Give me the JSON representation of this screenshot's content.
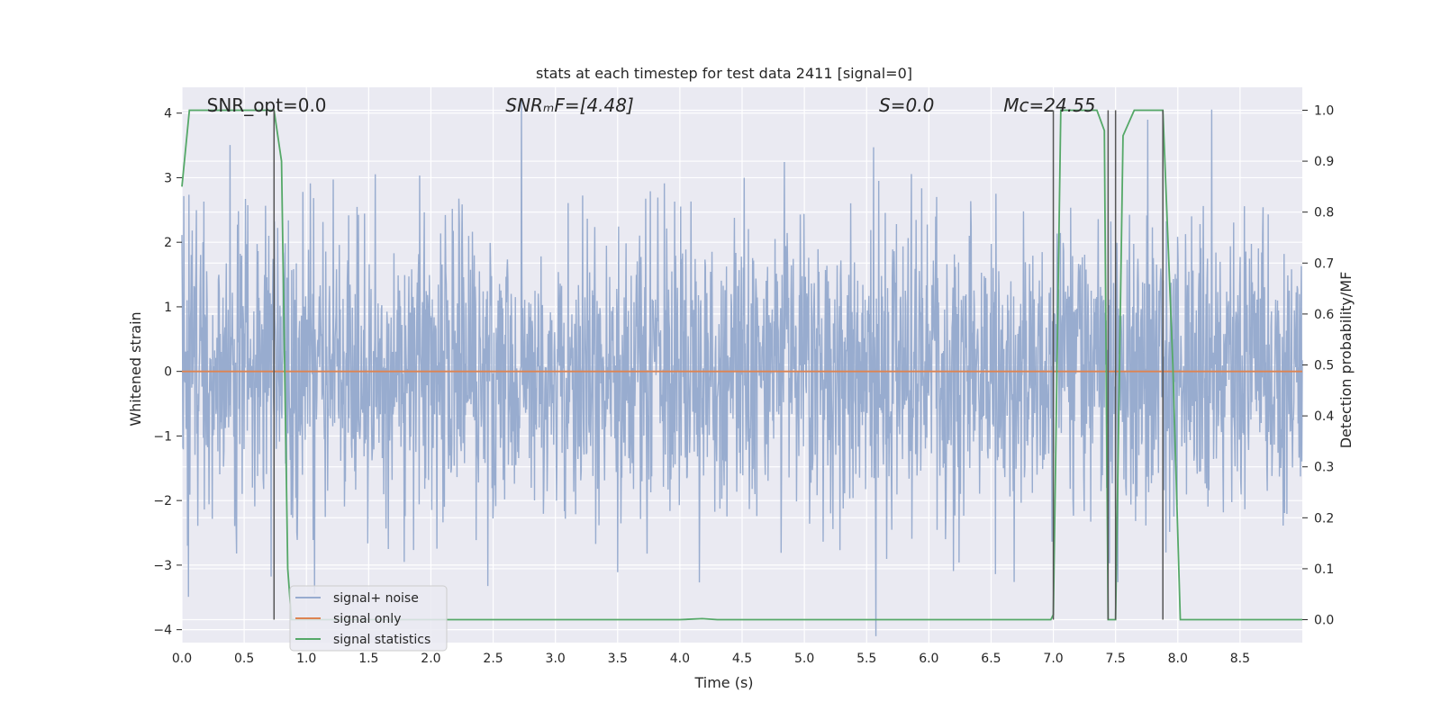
{
  "chart_data": {
    "type": "line",
    "title": "stats at each timestep for test data 2411 [signal=0]",
    "xlabel": "Time (s)",
    "ylabel": "Whitened strain",
    "ylabel_right": "Detection probability/MF",
    "xlim": [
      0,
      9.0
    ],
    "ylim": [
      -4.2,
      4.4
    ],
    "ylim_right": [
      -0.045,
      1.045
    ],
    "x_ticks": [
      0.0,
      0.5,
      1.0,
      1.5,
      2.0,
      2.5,
      3.0,
      3.5,
      4.0,
      4.5,
      5.0,
      5.5,
      6.0,
      6.5,
      7.0,
      7.5,
      8.0,
      8.5
    ],
    "x_tick_labels": [
      "0.0",
      "0.5",
      "1.0",
      "1.5",
      "2.0",
      "2.5",
      "3.0",
      "3.5",
      "4.0",
      "4.5",
      "5.0",
      "5.5",
      "6.0",
      "6.5",
      "7.0",
      "7.5",
      "8.0",
      "8.5"
    ],
    "y_ticks": [
      4,
      3,
      2,
      1,
      0,
      -1,
      -2,
      -3,
      -4
    ],
    "y_tick_labels": [
      "4",
      "3",
      "2",
      "1",
      "0",
      "−1",
      "−2",
      "−3",
      "−4"
    ],
    "y_ticks_right": [
      1.0,
      0.9,
      0.8,
      0.7,
      0.6,
      0.5,
      0.4,
      0.3,
      0.2,
      0.1,
      0.0
    ],
    "y_tick_labels_right": [
      "1.0",
      "0.9",
      "0.8",
      "0.7",
      "0.6",
      "0.5",
      "0.4",
      "0.3",
      "0.2",
      "0.1",
      "0.0"
    ],
    "grid": true,
    "legend_position": "lower-left",
    "annotations": [
      {
        "name": "snr-opt",
        "text": "SNR_opt=0.0",
        "x": 0.2
      },
      {
        "name": "snr-mf",
        "text": "SNRₘF=[4.48]",
        "x": 2.6
      },
      {
        "name": "s-value",
        "text": "S=0.0",
        "x": 5.6
      },
      {
        "name": "mc-value",
        "text": "Mᴄ=24.55",
        "x": 6.6
      }
    ],
    "series": [
      {
        "name": "signal+ noise",
        "color": "#98accf",
        "kind": "noise",
        "sigma": 1.0,
        "n_points": 2400,
        "seed": 2411
      },
      {
        "name": "signal only",
        "color": "#dd8452",
        "x": [
          0.0,
          9.0
        ],
        "y": [
          0.0,
          0.0
        ]
      },
      {
        "name": "signal statistics",
        "color": "#55a868",
        "axis": "right",
        "x": [
          0.0,
          0.06,
          0.1,
          0.5,
          0.68,
          0.74,
          0.8,
          0.85,
          0.88,
          1.0,
          2.0,
          3.0,
          4.0,
          4.18,
          4.3,
          5.0,
          6.0,
          6.98,
          7.0,
          7.06,
          7.35,
          7.41,
          7.44,
          7.5,
          7.56,
          7.65,
          7.85,
          7.88,
          7.96,
          8.02,
          8.5,
          9.0
        ],
        "y": [
          0.85,
          1.0,
          1.0,
          1.0,
          1.0,
          1.0,
          0.9,
          0.1,
          0.0,
          0.0,
          0.0,
          0.0,
          0.0,
          0.002,
          0.0,
          0.0,
          0.0,
          0.0,
          0.01,
          1.0,
          1.0,
          0.96,
          0.0,
          0.0,
          0.95,
          1.0,
          1.0,
          1.0,
          0.5,
          0.0,
          0.0,
          0.0
        ]
      }
    ],
    "vlines_x": [
      0.74,
      7.0,
      7.44,
      7.5,
      7.88
    ],
    "vline_color": "#555555",
    "background_color": "#eaeaf2"
  }
}
